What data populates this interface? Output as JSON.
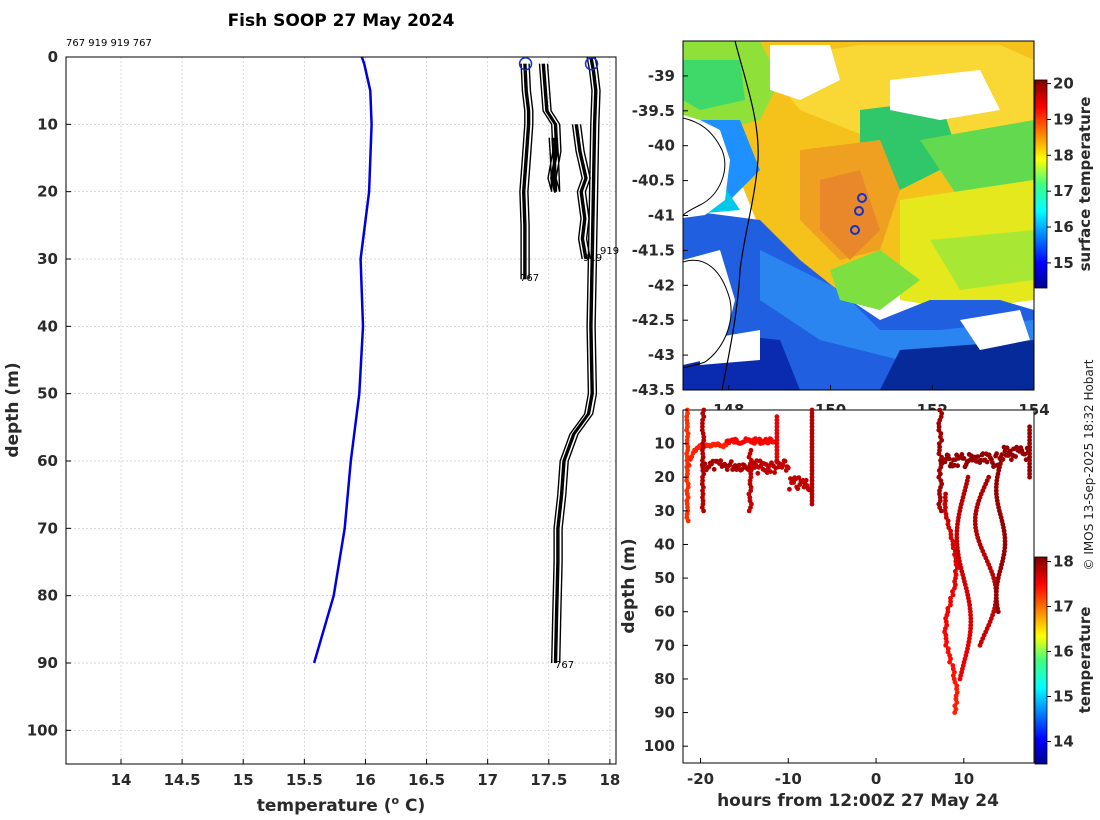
{
  "chart_data": [
    {
      "type": "line",
      "title": "Fish SOOP 27 May 2024",
      "xlabel": "temperature (o C)",
      "ylabel": "depth (m)",
      "xlim": [
        13.55,
        18.05
      ],
      "ylim": [
        105,
        0
      ],
      "xticks": [
        "14",
        "14.5",
        "15",
        "15.5",
        "16",
        "16.5",
        "17",
        "17.5",
        "18"
      ],
      "yticks": [
        "0",
        "10",
        "20",
        "30",
        "40",
        "50",
        "60",
        "70",
        "80",
        "90",
        "100"
      ],
      "top_annotation": "767 919 919 767",
      "profile_labels": [
        "767",
        "767",
        "919",
        "919"
      ],
      "series": [
        {
          "name": "climatology",
          "color": "#0000dd",
          "x": [
            15.97,
            15.99,
            16.04,
            16.05,
            16.03,
            15.96,
            15.98,
            15.95,
            15.88,
            15.83,
            15.74,
            15.58
          ],
          "y": [
            0,
            1,
            5,
            10,
            20,
            30,
            40,
            50,
            60,
            70,
            80,
            90
          ]
        },
        {
          "name": "767a",
          "color": "#000000",
          "x": [
            17.3,
            17.31,
            17.33,
            17.33,
            17.31,
            17.29,
            17.3,
            17.3
          ],
          "y": [
            1,
            5,
            8,
            10,
            15,
            20,
            25,
            33
          ]
        },
        {
          "name": "919a",
          "color": "#000000",
          "x": [
            17.45,
            17.48,
            17.55,
            17.56,
            17.52,
            17.55,
            17.54,
            17.53
          ],
          "y": [
            1,
            8,
            10,
            14,
            18,
            20,
            15,
            12
          ]
        },
        {
          "name": "919b",
          "color": "#000000",
          "x": [
            17.72,
            17.75,
            17.8,
            17.76,
            17.79,
            17.77,
            17.8
          ],
          "y": [
            10,
            14,
            18,
            20,
            24,
            27,
            30
          ]
        },
        {
          "name": "767b",
          "color": "#000000",
          "x": [
            17.84,
            17.86,
            17.88,
            17.87,
            17.86,
            17.85,
            17.84,
            17.85,
            17.82,
            17.7,
            17.62,
            17.6,
            17.57,
            17.57,
            17.56,
            17.55
          ],
          "y": [
            0,
            2,
            5,
            10,
            20,
            30,
            40,
            50,
            53,
            56,
            60,
            65,
            70,
            75,
            82,
            90
          ]
        }
      ],
      "markers": [
        {
          "x": 17.31,
          "y": 1
        },
        {
          "x": 17.85,
          "y": 1
        }
      ]
    },
    {
      "type": "heatmap",
      "title": "",
      "colorbar_label": "surface temperature",
      "colorbar_ticks": [
        "20",
        "19",
        "18",
        "17",
        "16",
        "15"
      ],
      "colorbar_range": [
        14.3,
        20.1
      ],
      "xticks": [
        "148",
        "150",
        "152",
        "154"
      ],
      "yticks": [
        "-39",
        "-39.5",
        "-40",
        "-40.5",
        "-41",
        "-41.5",
        "-42",
        "-42.5",
        "-43",
        "-43.5"
      ],
      "xlim": [
        147.1,
        154
      ],
      "ylim": [
        -43.5,
        -38.5
      ],
      "points": [
        {
          "lon": 151.8,
          "lat": -40.75
        },
        {
          "lon": 151.75,
          "lat": -40.95
        },
        {
          "lon": 151.65,
          "lat": -41.2
        }
      ]
    },
    {
      "type": "scatter",
      "xlabel": "hours from 12:00Z 27 May 24",
      "ylabel": "depth (m)",
      "colorbar_label": "temperature",
      "colorbar_ticks": [
        "18",
        "17",
        "16",
        "15",
        "14"
      ],
      "colorbar_range": [
        13.5,
        18.1
      ],
      "xlim": [
        -22,
        18
      ],
      "ylim": [
        105,
        0
      ],
      "xticks": [
        "-20",
        "-10",
        "0",
        "10"
      ],
      "yticks": [
        "0",
        "10",
        "20",
        "30",
        "40",
        "50",
        "60",
        "70",
        "80",
        "90",
        "100"
      ]
    }
  ],
  "credit": "© IMOS 13-Sep-2025 18:32 Hobart"
}
